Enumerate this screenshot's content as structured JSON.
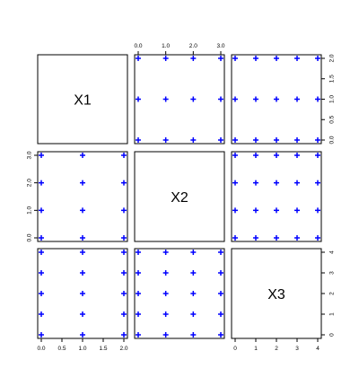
{
  "chart_data": {
    "type": "scatter",
    "subtype": "pairs-matrix",
    "variables": [
      {
        "name": "X1",
        "range": [
          0,
          2
        ],
        "ticks": [
          "0.0",
          "0.5",
          "1.0",
          "1.5",
          "2.0"
        ],
        "tick_values": [
          0,
          0.5,
          1,
          1.5,
          2
        ]
      },
      {
        "name": "X2",
        "range": [
          0,
          3
        ],
        "ticks": [
          "0.0",
          "1.0",
          "2.0",
          "3.0"
        ],
        "tick_values": [
          0,
          1,
          2,
          3
        ]
      },
      {
        "name": "X3",
        "range": [
          0,
          4
        ],
        "ticks": [
          "0",
          "1",
          "2",
          "3",
          "4"
        ],
        "tick_values": [
          0,
          1,
          2,
          3,
          4
        ]
      }
    ],
    "points": {
      "X1": [
        0,
        0,
        0,
        0,
        0,
        1,
        1,
        1,
        1,
        1,
        2,
        2,
        2,
        2,
        2,
        0,
        0,
        0,
        0,
        0,
        1,
        1,
        1,
        1,
        1,
        2,
        2,
        2,
        2,
        2,
        0,
        0,
        0,
        0,
        0,
        1,
        1,
        1,
        1,
        1,
        2,
        2,
        2,
        2,
        2,
        0,
        0,
        0,
        0,
        0,
        1,
        1,
        1,
        1,
        1,
        2,
        2,
        2,
        2,
        2
      ],
      "X2": [
        0,
        0,
        0,
        0,
        0,
        0,
        0,
        0,
        0,
        0,
        0,
        0,
        0,
        0,
        0,
        1,
        1,
        1,
        1,
        1,
        1,
        1,
        1,
        1,
        1,
        1,
        1,
        1,
        1,
        1,
        2,
        2,
        2,
        2,
        2,
        2,
        2,
        2,
        2,
        2,
        2,
        2,
        2,
        2,
        2,
        3,
        3,
        3,
        3,
        3,
        3,
        3,
        3,
        3,
        3,
        3,
        3,
        3,
        3,
        3
      ],
      "X3": [
        0,
        1,
        2,
        3,
        4,
        0,
        1,
        2,
        3,
        4,
        0,
        1,
        2,
        3,
        4,
        0,
        1,
        2,
        3,
        4,
        0,
        1,
        2,
        3,
        4,
        0,
        1,
        2,
        3,
        4,
        0,
        1,
        2,
        3,
        4,
        0,
        1,
        2,
        3,
        4,
        0,
        1,
        2,
        3,
        4,
        0,
        1,
        2,
        3,
        4,
        0,
        1,
        2,
        3,
        4,
        0,
        1,
        2,
        3,
        4
      ]
    },
    "marker": "+",
    "color": "#0000ff",
    "grid": false,
    "legend": "none"
  }
}
